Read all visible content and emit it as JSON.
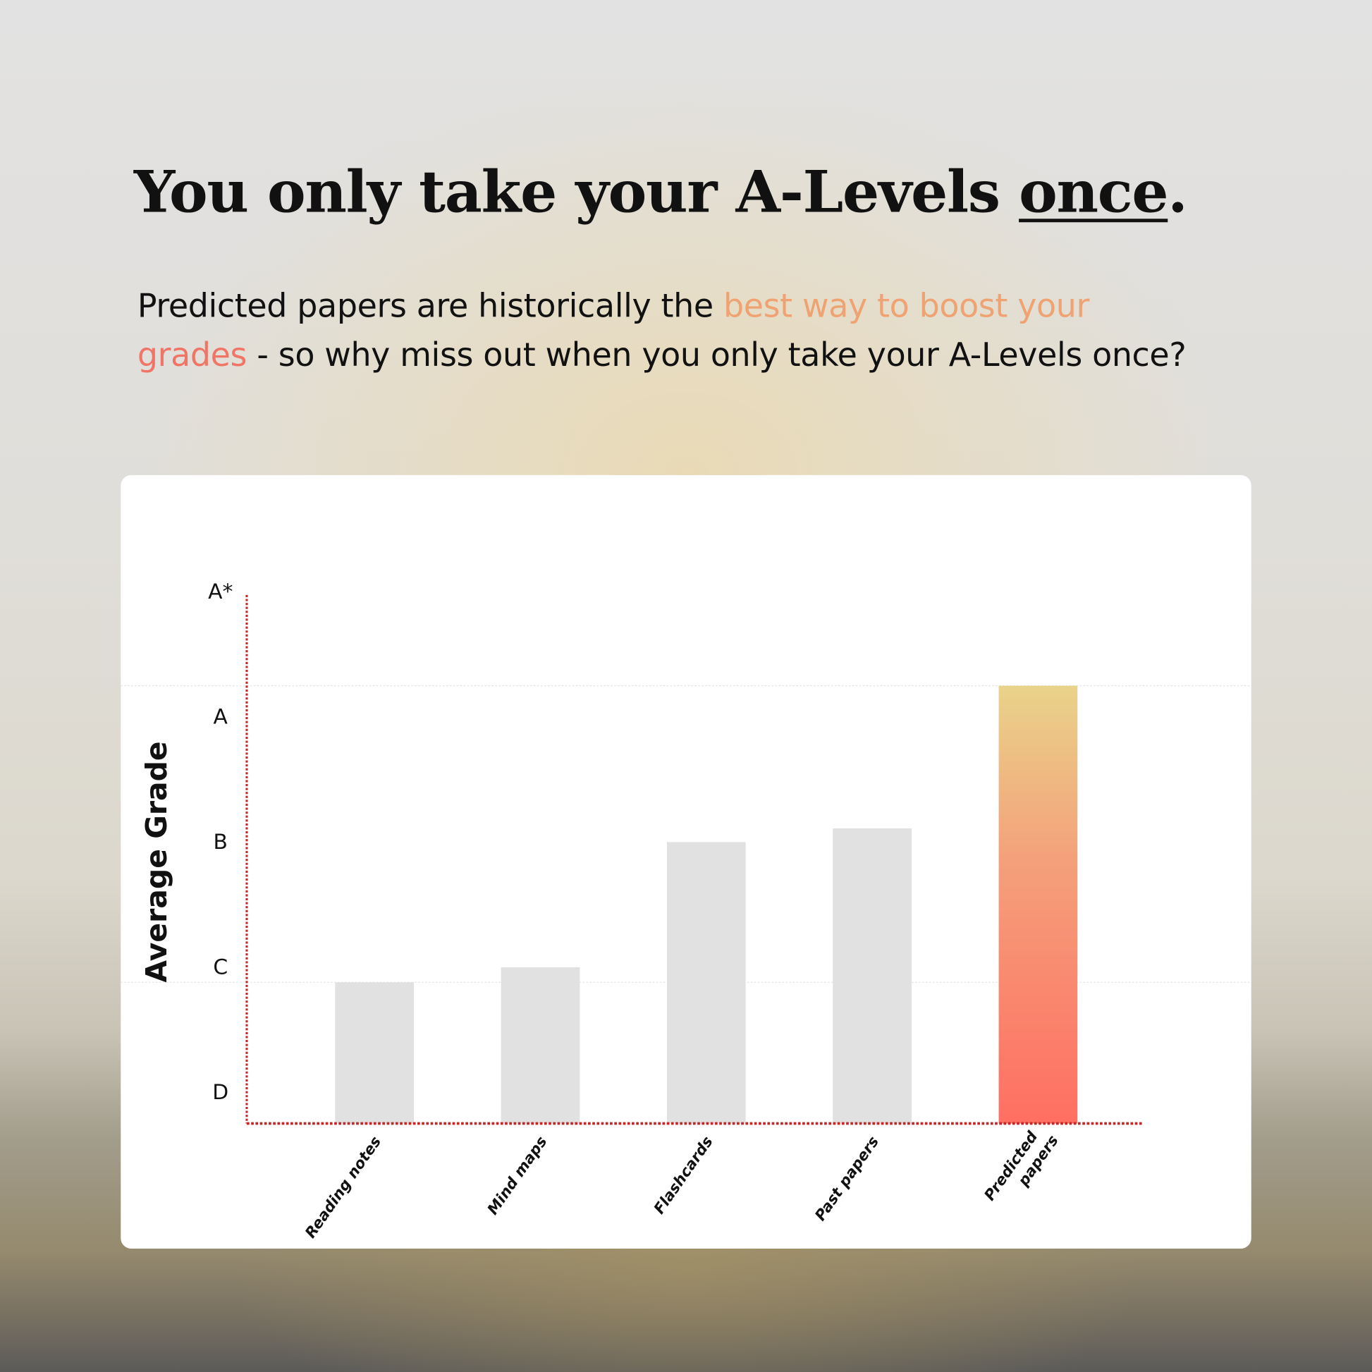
{
  "header": {
    "title_prefix": "You only take your A-Levels ",
    "title_emphasis": "once",
    "title_suffix": ".",
    "subtitle_part1": "Predicted papers are historically the ",
    "subtitle_highlight1": "best way to boost your",
    "subtitle_highlight2": "grades",
    "subtitle_part2": " - so why miss out when you only take your A-Levels once?"
  },
  "chart_data": {
    "type": "bar",
    "title": "",
    "xlabel": "",
    "ylabel": "Average Grade",
    "y_ticks": [
      {
        "label": "D",
        "value": 1
      },
      {
        "label": "C",
        "value": 2
      },
      {
        "label": "B",
        "value": 3
      },
      {
        "label": "A",
        "value": 4
      },
      {
        "label": "A*",
        "value": 5
      }
    ],
    "ylim": [
      0.74,
      5
    ],
    "categories": [
      [
        "Reading notes"
      ],
      [
        "Mind maps"
      ],
      [
        "Flashcards"
      ],
      [
        "Past papers"
      ],
      [
        "Predicted",
        "papers"
      ]
    ],
    "values": [
      1.87,
      1.99,
      2.99,
      3.1,
      4.24
    ],
    "highlighted_category": "Predicted papers",
    "gridlines_at": [
      1.87,
      4.24
    ],
    "colors": {
      "bar": "#e1e1e1",
      "highlight_top": "#e9d38a",
      "highlight_bottom": "#ff6f62",
      "axis": "#c0282a"
    }
  }
}
